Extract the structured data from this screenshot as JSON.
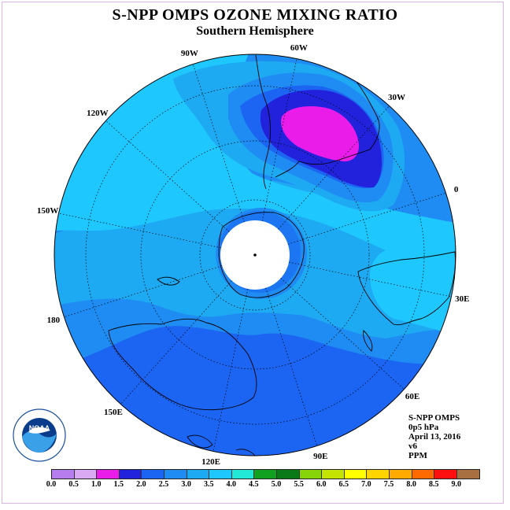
{
  "title": "S-NPP OMPS OZONE MIXING RATIO",
  "subtitle": "Southern Hemisphere",
  "longitude_labels": [
    {
      "text": "90W",
      "lon": -90
    },
    {
      "text": "60W",
      "lon": -60
    },
    {
      "text": "30W",
      "lon": -30
    },
    {
      "text": "0",
      "lon": 0
    },
    {
      "text": "30E",
      "lon": 30
    },
    {
      "text": "60E",
      "lon": 60
    },
    {
      "text": "90E",
      "lon": 90
    },
    {
      "text": "120E",
      "lon": 120
    },
    {
      "text": "150E",
      "lon": 150
    },
    {
      "text": "180",
      "lon": 180
    },
    {
      "text": "150W",
      "lon": -150
    },
    {
      "text": "120W",
      "lon": -120
    }
  ],
  "info": {
    "product": "S-NPP OMPS",
    "level": "0p5 hPa",
    "date": "April 13, 2016",
    "version": "v6",
    "units": "PPM"
  },
  "logo": {
    "text": "NOAA",
    "icon": "noaa-logo"
  },
  "colorbar": {
    "ticks": [
      "0.0",
      "0.5",
      "1.0",
      "1.5",
      "2.0",
      "2.5",
      "3.0",
      "3.5",
      "4.0",
      "4.5",
      "5.0",
      "5.5",
      "6.0",
      "6.5",
      "7.0",
      "7.5",
      "8.0",
      "8.5",
      "9.0"
    ],
    "colors": [
      "#b57ded",
      "#d9a9f3",
      "#ea1cea",
      "#2222dd",
      "#1c64f2",
      "#1e8cf2",
      "#1eaaf2",
      "#1ec8ff",
      "#22e8d8",
      "#12a020",
      "#0a7a18",
      "#88d40a",
      "#c4e400",
      "#ffff00",
      "#ffd400",
      "#ffaa00",
      "#ff6a00",
      "#ff1010",
      "#a87040"
    ]
  },
  "colors": {
    "band_2_0_2_5": "#1c64f2",
    "band_2_5_3_0": "#1e8cf2",
    "band_3_0_3_5": "#1eaaf2",
    "band_3_5_4_0": "#1ec8ff",
    "band_1_5_2_0": "#2222dd",
    "band_1_0_1_5": "#ea1cea"
  }
}
